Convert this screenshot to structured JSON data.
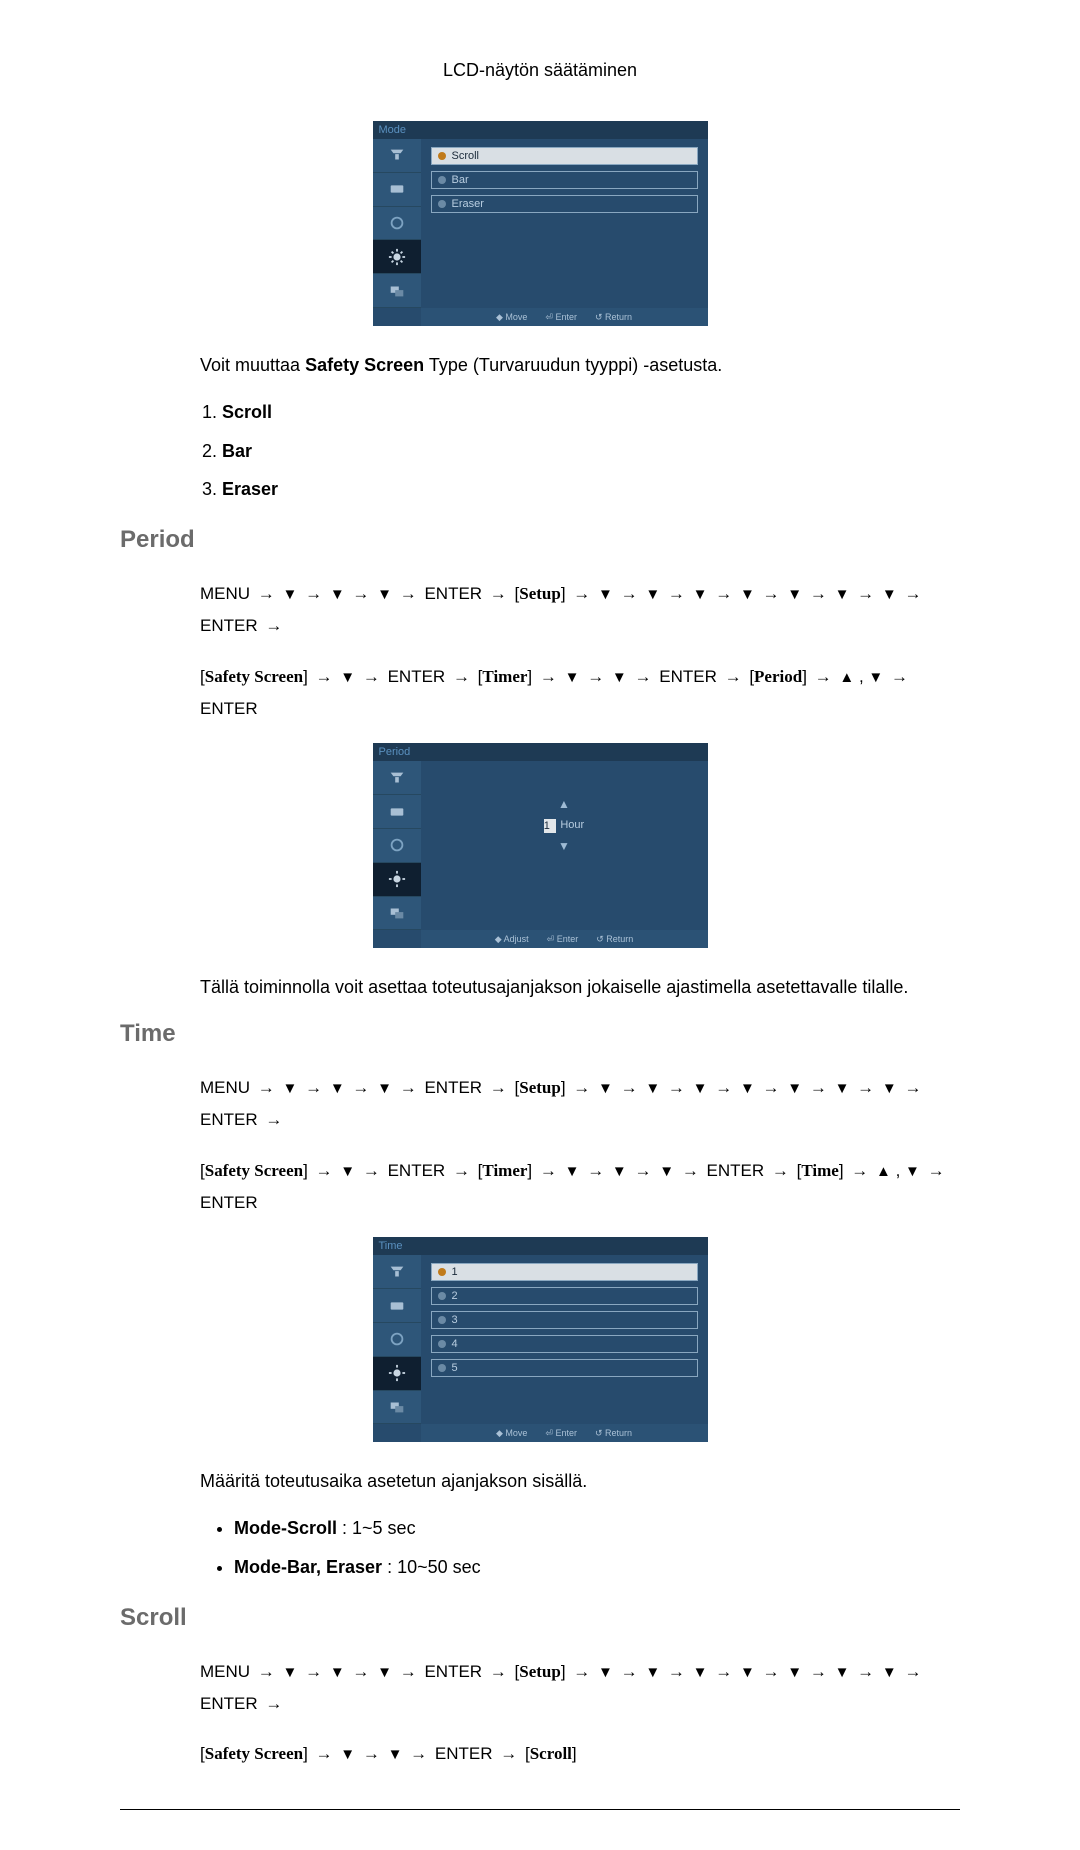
{
  "header_title": "LCD-näytön säätäminen",
  "section_heading": {
    "period": "Period",
    "time": "Time",
    "scroll": "Scroll"
  },
  "para": {
    "type_intro_prefix": "Voit muuttaa ",
    "type_intro_bold": "Safety Screen",
    "type_intro_suffix": " Type (Turvaruudun tyyppi) -asetusta.",
    "period_desc": "Tällä toiminnolla voit asettaa toteutusajanjakson jokaiselle ajastimella asetettavalle tilalle.",
    "time_desc": "Määritä toteutusaika asetetun ajanjakson sisällä."
  },
  "type_items": [
    "Scroll",
    "Bar",
    "Eraser"
  ],
  "time_bullets": [
    {
      "bold": "Mode-Scroll",
      "rest": " : 1~5 sec"
    },
    {
      "bold": "Mode-Bar, Eraser",
      "rest": " : 10~50 sec"
    }
  ],
  "osd": {
    "mode": {
      "title": "Mode",
      "options": [
        "Scroll",
        "Bar",
        "Eraser"
      ],
      "footer": [
        "◆ Move",
        "⏎ Enter",
        "↺ Return"
      ]
    },
    "period": {
      "title": "Period",
      "value": "1",
      "unit": "Hour",
      "footer": [
        "◆ Adjust",
        "⏎ Enter",
        "↺ Return"
      ]
    },
    "time": {
      "title": "Time",
      "options": [
        "1",
        "2",
        "3",
        "4",
        "5"
      ],
      "footer": [
        "◆ Move",
        "⏎ Enter",
        "↺ Return"
      ]
    }
  },
  "nav": {
    "period_line1_tokens": [
      "MENU",
      "→",
      "▼",
      "→",
      "▼",
      "→",
      "▼",
      "→",
      "ENTER",
      "→",
      "[Setup]",
      "→",
      "▼",
      "→",
      "▼",
      "→",
      "▼",
      "→",
      "▼",
      "→",
      "▼",
      "→",
      "▼",
      "→",
      "▼",
      "→",
      "ENTER",
      "→"
    ],
    "period_line2_tokens": [
      "[Safety Screen]",
      "→",
      "▼",
      "→",
      "ENTER",
      "→",
      "[Timer]",
      "→",
      "▼",
      "→",
      "▼",
      "→",
      "ENTER",
      "→",
      "[Period]",
      "→",
      "▲",
      ",",
      "▼",
      "→",
      "ENTER"
    ],
    "time_line1_tokens": [
      "MENU",
      "→",
      "▼",
      "→",
      "▼",
      "→",
      "▼",
      "→",
      "ENTER",
      "→",
      "[Setup]",
      "→",
      "▼",
      "→",
      "▼",
      "→",
      "▼",
      "→",
      "▼",
      "→",
      "▼",
      "→",
      "▼",
      "→",
      "▼",
      "→",
      "ENTER",
      "→"
    ],
    "time_line2_tokens": [
      "[Safety Screen]",
      "→",
      "▼",
      "→",
      "ENTER",
      "→",
      "[Timer]",
      "→",
      "▼",
      "→",
      "▼",
      "→",
      "▼",
      "→",
      "ENTER",
      "→",
      "[Time]",
      "→",
      "▲",
      ",",
      "▼",
      "→",
      "ENTER"
    ],
    "scroll_line1_tokens": [
      "MENU",
      "→",
      "▼",
      "→",
      "▼",
      "→",
      "▼",
      "→",
      "ENTER",
      "→",
      "[Setup]",
      "→",
      "▼",
      "→",
      "▼",
      "→",
      "▼",
      "→",
      "▼",
      "→",
      "▼",
      "→",
      "▼",
      "→",
      "▼",
      "→",
      "ENTER",
      "→"
    ],
    "scroll_line2_tokens": [
      "[Safety Screen]",
      "→",
      "▼",
      "→",
      "▼",
      "→",
      "ENTER",
      "→",
      "[Scroll]"
    ]
  },
  "colors": {
    "osd_bg": "#274b6d",
    "osd_titlebar": "#1e3a54",
    "osd_sidebar": "#2e5679",
    "osd_sidebar_sel": "#0f1f30",
    "osd_footer": "#2b5275",
    "option_selected_bg": "#d9dfe4",
    "heading_color": "#6b6b6b"
  }
}
